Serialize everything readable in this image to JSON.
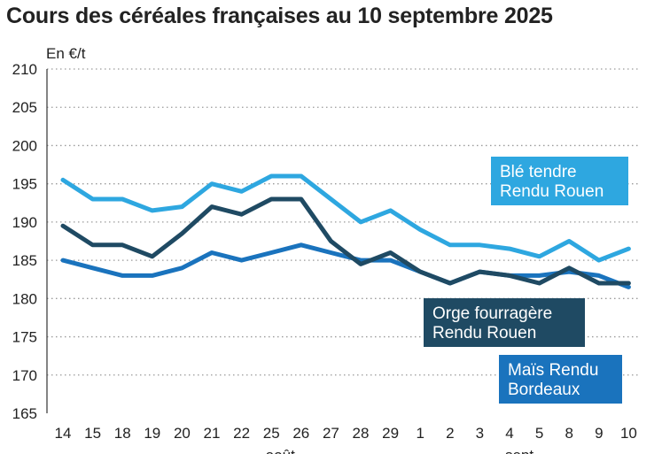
{
  "title": "Cours des céréales françaises au 10 septembre 2025",
  "chart_data": {
    "type": "line",
    "title": "Cours des céréales françaises au 10 septembre 2025",
    "ylabel": "En €/t",
    "xlabel": "",
    "ylim": [
      165,
      210
    ],
    "yticks": [
      165,
      170,
      175,
      180,
      185,
      190,
      195,
      200,
      205,
      210
    ],
    "grid": true,
    "categories": [
      "14",
      "15",
      "18",
      "19",
      "20",
      "21",
      "22",
      "25",
      "26",
      "27",
      "28",
      "29",
      "1",
      "2",
      "3",
      "4",
      "5",
      "8",
      "9",
      "10"
    ],
    "month_labels": [
      "août",
      "sept."
    ],
    "series": [
      {
        "name": "Blé tendre Rendu Rouen",
        "color": "#2ea7e0",
        "values": [
          195.5,
          193,
          193,
          191.5,
          192,
          195,
          194,
          196,
          196,
          193,
          190,
          191.5,
          189,
          187,
          187,
          186.5,
          185.5,
          187.5,
          185,
          186.5
        ]
      },
      {
        "name": "Orge fourragère Rendu Rouen",
        "color": "#1f4a63",
        "values": [
          189.5,
          187,
          187,
          185.5,
          188.5,
          192,
          191,
          193,
          193,
          187.5,
          184.5,
          186,
          183.5,
          182,
          183.5,
          183,
          182,
          184,
          182,
          182
        ]
      },
      {
        "name": "Maïs Rendu Bordeaux",
        "color": "#1a73bd",
        "values": [
          185,
          184,
          183,
          183,
          184,
          186,
          185,
          186,
          187,
          186,
          185,
          185,
          183.5,
          182,
          183.5,
          183,
          183,
          183.5,
          183,
          181.5
        ]
      }
    ]
  }
}
